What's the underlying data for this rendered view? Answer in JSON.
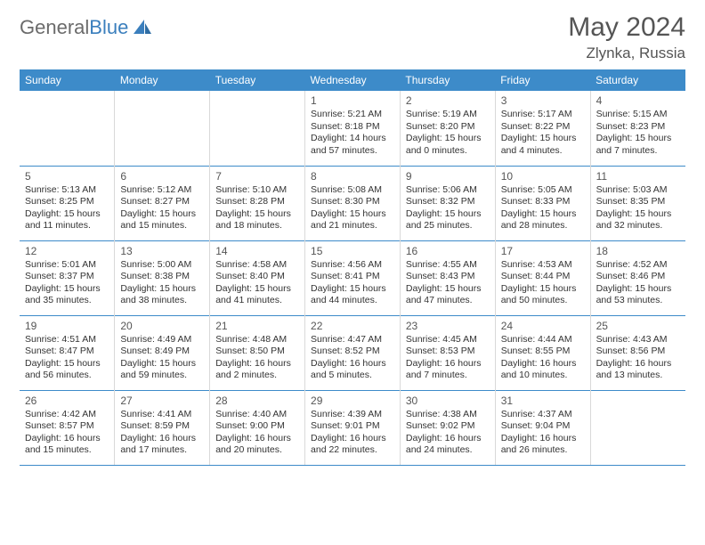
{
  "logo": {
    "text1": "General",
    "text2": "Blue"
  },
  "title": "May 2024",
  "subtitle": "Zlynka, Russia",
  "colors": {
    "header_bg": "#3d8bc9",
    "header_fg": "#ffffff",
    "row_border": "#3d8bc9",
    "cell_border": "#d9d9d9",
    "page_bg": "#ffffff",
    "text": "#333333",
    "logo_gray": "#6b6b6b",
    "logo_blue": "#3b7fbd"
  },
  "days": [
    "Sunday",
    "Monday",
    "Tuesday",
    "Wednesday",
    "Thursday",
    "Friday",
    "Saturday"
  ],
  "weeks": [
    [
      null,
      null,
      null,
      {
        "n": "1",
        "sr": "5:21 AM",
        "ss": "8:18 PM",
        "dl": "14 hours and 57 minutes."
      },
      {
        "n": "2",
        "sr": "5:19 AM",
        "ss": "8:20 PM",
        "dl": "15 hours and 0 minutes."
      },
      {
        "n": "3",
        "sr": "5:17 AM",
        "ss": "8:22 PM",
        "dl": "15 hours and 4 minutes."
      },
      {
        "n": "4",
        "sr": "5:15 AM",
        "ss": "8:23 PM",
        "dl": "15 hours and 7 minutes."
      }
    ],
    [
      {
        "n": "5",
        "sr": "5:13 AM",
        "ss": "8:25 PM",
        "dl": "15 hours and 11 minutes."
      },
      {
        "n": "6",
        "sr": "5:12 AM",
        "ss": "8:27 PM",
        "dl": "15 hours and 15 minutes."
      },
      {
        "n": "7",
        "sr": "5:10 AM",
        "ss": "8:28 PM",
        "dl": "15 hours and 18 minutes."
      },
      {
        "n": "8",
        "sr": "5:08 AM",
        "ss": "8:30 PM",
        "dl": "15 hours and 21 minutes."
      },
      {
        "n": "9",
        "sr": "5:06 AM",
        "ss": "8:32 PM",
        "dl": "15 hours and 25 minutes."
      },
      {
        "n": "10",
        "sr": "5:05 AM",
        "ss": "8:33 PM",
        "dl": "15 hours and 28 minutes."
      },
      {
        "n": "11",
        "sr": "5:03 AM",
        "ss": "8:35 PM",
        "dl": "15 hours and 32 minutes."
      }
    ],
    [
      {
        "n": "12",
        "sr": "5:01 AM",
        "ss": "8:37 PM",
        "dl": "15 hours and 35 minutes."
      },
      {
        "n": "13",
        "sr": "5:00 AM",
        "ss": "8:38 PM",
        "dl": "15 hours and 38 minutes."
      },
      {
        "n": "14",
        "sr": "4:58 AM",
        "ss": "8:40 PM",
        "dl": "15 hours and 41 minutes."
      },
      {
        "n": "15",
        "sr": "4:56 AM",
        "ss": "8:41 PM",
        "dl": "15 hours and 44 minutes."
      },
      {
        "n": "16",
        "sr": "4:55 AM",
        "ss": "8:43 PM",
        "dl": "15 hours and 47 minutes."
      },
      {
        "n": "17",
        "sr": "4:53 AM",
        "ss": "8:44 PM",
        "dl": "15 hours and 50 minutes."
      },
      {
        "n": "18",
        "sr": "4:52 AM",
        "ss": "8:46 PM",
        "dl": "15 hours and 53 minutes."
      }
    ],
    [
      {
        "n": "19",
        "sr": "4:51 AM",
        "ss": "8:47 PM",
        "dl": "15 hours and 56 minutes."
      },
      {
        "n": "20",
        "sr": "4:49 AM",
        "ss": "8:49 PM",
        "dl": "15 hours and 59 minutes."
      },
      {
        "n": "21",
        "sr": "4:48 AM",
        "ss": "8:50 PM",
        "dl": "16 hours and 2 minutes."
      },
      {
        "n": "22",
        "sr": "4:47 AM",
        "ss": "8:52 PM",
        "dl": "16 hours and 5 minutes."
      },
      {
        "n": "23",
        "sr": "4:45 AM",
        "ss": "8:53 PM",
        "dl": "16 hours and 7 minutes."
      },
      {
        "n": "24",
        "sr": "4:44 AM",
        "ss": "8:55 PM",
        "dl": "16 hours and 10 minutes."
      },
      {
        "n": "25",
        "sr": "4:43 AM",
        "ss": "8:56 PM",
        "dl": "16 hours and 13 minutes."
      }
    ],
    [
      {
        "n": "26",
        "sr": "4:42 AM",
        "ss": "8:57 PM",
        "dl": "16 hours and 15 minutes."
      },
      {
        "n": "27",
        "sr": "4:41 AM",
        "ss": "8:59 PM",
        "dl": "16 hours and 17 minutes."
      },
      {
        "n": "28",
        "sr": "4:40 AM",
        "ss": "9:00 PM",
        "dl": "16 hours and 20 minutes."
      },
      {
        "n": "29",
        "sr": "4:39 AM",
        "ss": "9:01 PM",
        "dl": "16 hours and 22 minutes."
      },
      {
        "n": "30",
        "sr": "4:38 AM",
        "ss": "9:02 PM",
        "dl": "16 hours and 24 minutes."
      },
      {
        "n": "31",
        "sr": "4:37 AM",
        "ss": "9:04 PM",
        "dl": "16 hours and 26 minutes."
      },
      null
    ]
  ],
  "labels": {
    "sunrise": "Sunrise:",
    "sunset": "Sunset:",
    "daylight": "Daylight:"
  }
}
